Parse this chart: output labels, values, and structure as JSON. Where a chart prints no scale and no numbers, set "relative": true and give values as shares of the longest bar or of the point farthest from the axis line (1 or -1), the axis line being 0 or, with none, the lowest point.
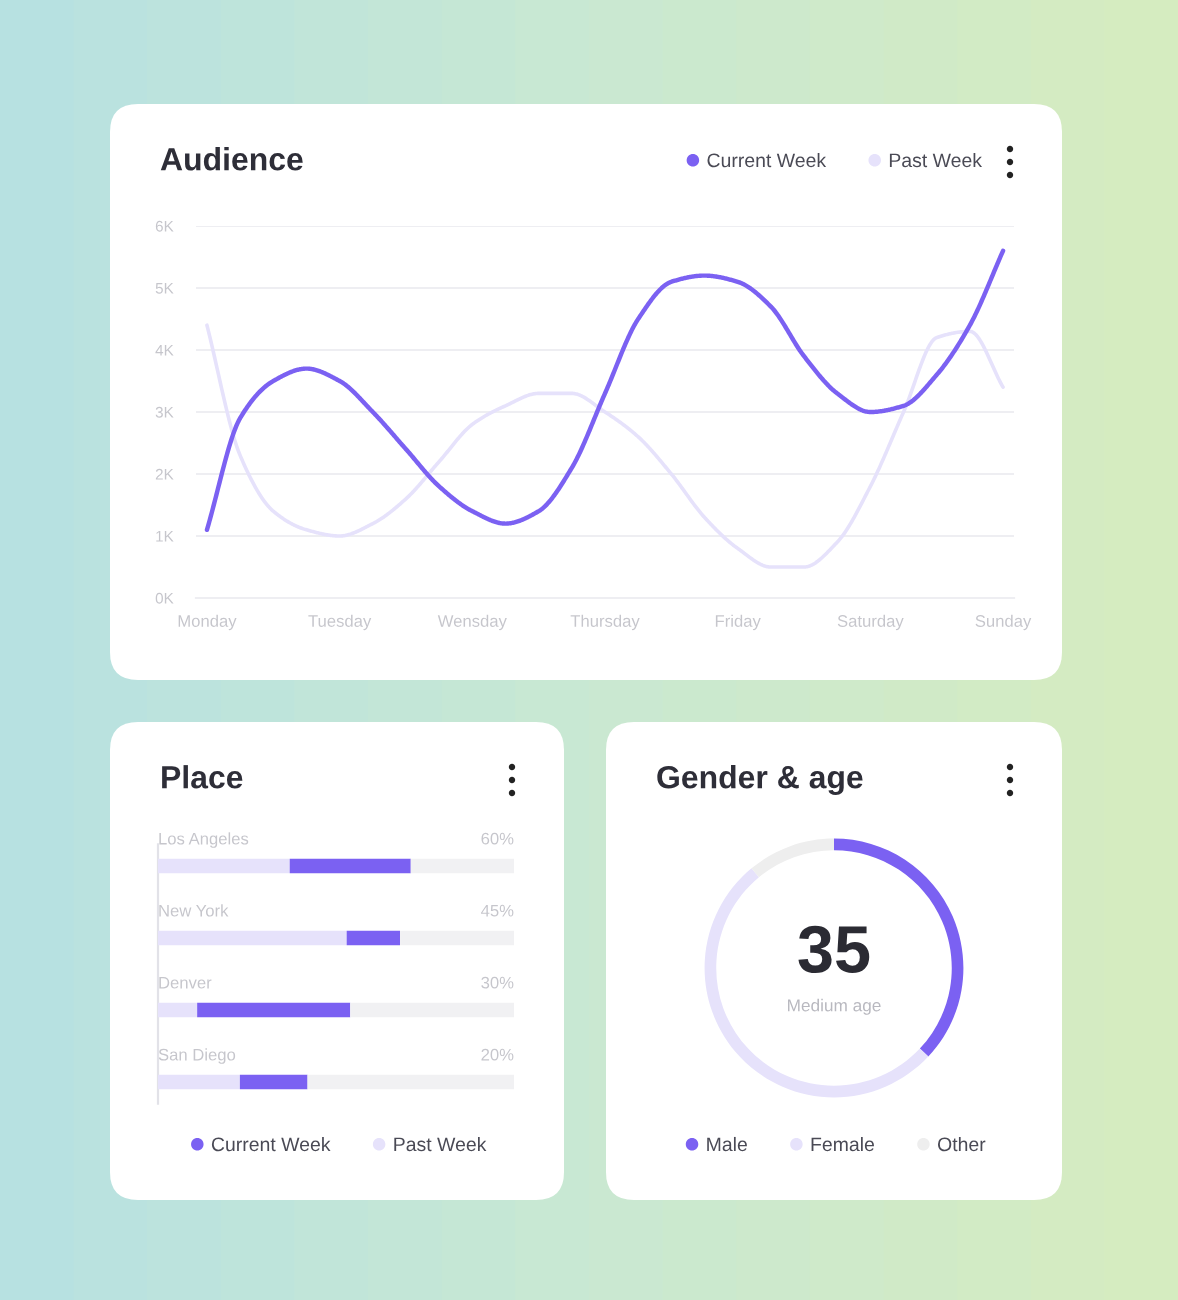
{
  "chart_data": [
    {
      "type": "line",
      "title": "Audience",
      "legend": "top right",
      "grid": "y",
      "categories": [
        "Monday",
        null,
        null,
        null,
        "Tuesday",
        null,
        null,
        null,
        "Wensday",
        null,
        null,
        null,
        "Thursday",
        null,
        null,
        null,
        "Friday",
        null,
        null,
        null,
        "Saturday",
        null,
        null,
        null,
        "Sunday"
      ],
      "ylim": [
        0,
        6000
      ],
      "yticks": [
        {
          "value": 0,
          "label": "0K"
        },
        {
          "value": 1000,
          "label": "1K"
        },
        {
          "value": 2000,
          "label": "2K"
        },
        {
          "value": 3000,
          "label": "3K"
        },
        {
          "value": 4000,
          "label": "4K"
        },
        {
          "value": 5000,
          "label": "5K"
        },
        {
          "value": 6000,
          "label": "6K"
        }
      ],
      "series": [
        {
          "name": "Current Week",
          "color": "#7b61f2",
          "values": [
            1100,
            2900,
            3500,
            3700,
            3500,
            3000,
            2400,
            1800,
            1400,
            1200,
            1400,
            2100,
            3300,
            4500,
            5100,
            5200,
            5100,
            4700,
            3900,
            3300,
            3000,
            3100,
            3600,
            4400,
            5600
          ]
        },
        {
          "name": "Past Week",
          "color": "#e6e2fb",
          "values": [
            4400,
            2300,
            1400,
            1100,
            1000,
            1200,
            1600,
            2200,
            2800,
            3100,
            3300,
            3300,
            3000,
            2600,
            2000,
            1300,
            800,
            500,
            500,
            900,
            1800,
            3000,
            4200,
            4300,
            3400
          ]
        }
      ]
    },
    {
      "type": "bar",
      "title": "Place",
      "orientation": "horizontal",
      "stacked": true,
      "relative": true,
      "legend": "bottom",
      "categories": [
        "Los Angeles",
        "New York",
        "Denver",
        "San Diego"
      ],
      "series": [
        {
          "name": "Past Week",
          "color": "#e6e2fb",
          "values": [
            0.37,
            0.53,
            0.11,
            0.23
          ]
        },
        {
          "name": "Current Week",
          "color": "#7b61f2",
          "values": [
            0.34,
            0.15,
            0.43,
            0.19
          ]
        },
        {
          "color": "#f1f1f3",
          "values": [
            0.29,
            0.32,
            0.46,
            0.58
          ]
        }
      ],
      "annotations": [
        "60%",
        "45%",
        "30%",
        "20%"
      ]
    },
    {
      "type": "donut",
      "title": "Gender & age",
      "legend": "bottom",
      "categories": [
        "Male",
        "Female",
        "Other"
      ],
      "values": [
        37,
        52,
        11
      ],
      "colors": [
        "#7b61f2",
        "#e6e2fb",
        "#eeeeee"
      ],
      "annotations": [
        "35",
        "Medium age"
      ]
    }
  ]
}
